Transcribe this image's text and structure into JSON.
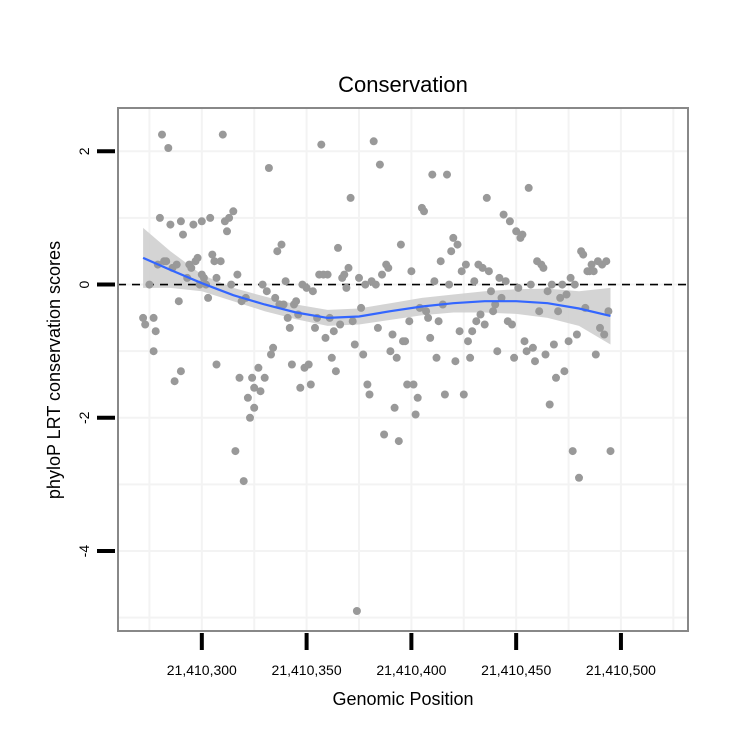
{
  "chart_data": {
    "type": "scatter",
    "title": "Conservation",
    "xlabel": "Genomic Position",
    "ylabel": "phyloP LRT conservation scores",
    "xlim": [
      21410260,
      21410532
    ],
    "ylim": [
      -5.2,
      2.65
    ],
    "x_ticks": [
      21410300,
      21410350,
      21410400,
      21410450,
      21410500
    ],
    "x_tick_labels": [
      "21,410,300",
      "21,410,350",
      "21,410,400",
      "21,410,450",
      "21,410,500"
    ],
    "y_ticks": [
      2,
      0,
      -2,
      -4
    ],
    "y_tick_labels": [
      "2",
      "0",
      "-2",
      "-4"
    ],
    "reference_line_y": 0,
    "colors": {
      "points": "#999999",
      "smooth_line": "#3366FF",
      "ribbon": "#CCCCCC",
      "panel_border": "#888888",
      "grid": "#F3F3F3"
    },
    "points": [
      {
        "x": 21410272,
        "y": -0.5
      },
      {
        "x": 21410273,
        "y": -0.6
      },
      {
        "x": 21410275,
        "y": 0.0
      },
      {
        "x": 21410277,
        "y": -0.5
      },
      {
        "x": 21410277,
        "y": -1.0
      },
      {
        "x": 21410278,
        "y": -0.7
      },
      {
        "x": 21410279,
        "y": 0.3
      },
      {
        "x": 21410280,
        "y": 1.0
      },
      {
        "x": 21410281,
        "y": 2.25
      },
      {
        "x": 21410282,
        "y": 0.35
      },
      {
        "x": 21410283,
        "y": 0.35
      },
      {
        "x": 21410284,
        "y": 2.05
      },
      {
        "x": 21410285,
        "y": 0.9
      },
      {
        "x": 21410286,
        "y": 0.25
      },
      {
        "x": 21410287,
        "y": -1.45
      },
      {
        "x": 21410288,
        "y": 0.3
      },
      {
        "x": 21410289,
        "y": -0.25
      },
      {
        "x": 21410290,
        "y": -1.3
      },
      {
        "x": 21410290,
        "y": 0.95
      },
      {
        "x": 21410291,
        "y": 0.75
      },
      {
        "x": 21410293,
        "y": 0.1
      },
      {
        "x": 21410294,
        "y": 0.3
      },
      {
        "x": 21410295,
        "y": 0.25
      },
      {
        "x": 21410296,
        "y": 0.9
      },
      {
        "x": 21410297,
        "y": 0.35
      },
      {
        "x": 21410298,
        "y": 0.4
      },
      {
        "x": 21410299,
        "y": 0.0
      },
      {
        "x": 21410300,
        "y": 0.95
      },
      {
        "x": 21410300,
        "y": 0.15
      },
      {
        "x": 21410301,
        "y": 0.1
      },
      {
        "x": 21410302,
        "y": 0.0
      },
      {
        "x": 21410303,
        "y": -0.2
      },
      {
        "x": 21410304,
        "y": 1.0
      },
      {
        "x": 21410305,
        "y": 0.45
      },
      {
        "x": 21410306,
        "y": 0.35
      },
      {
        "x": 21410307,
        "y": 0.1
      },
      {
        "x": 21410307,
        "y": -1.2
      },
      {
        "x": 21410309,
        "y": 0.35
      },
      {
        "x": 21410310,
        "y": 2.25
      },
      {
        "x": 21410311,
        "y": 0.95
      },
      {
        "x": 21410312,
        "y": 0.8
      },
      {
        "x": 21410313,
        "y": 1.0
      },
      {
        "x": 21410314,
        "y": 0.0
      },
      {
        "x": 21410315,
        "y": 1.1
      },
      {
        "x": 21410316,
        "y": -2.5
      },
      {
        "x": 21410317,
        "y": 0.15
      },
      {
        "x": 21410318,
        "y": -1.4
      },
      {
        "x": 21410319,
        "y": -0.25
      },
      {
        "x": 21410320,
        "y": -2.95
      },
      {
        "x": 21410321,
        "y": -0.2
      },
      {
        "x": 21410322,
        "y": -1.7
      },
      {
        "x": 21410323,
        "y": -2.0
      },
      {
        "x": 21410324,
        "y": -1.4
      },
      {
        "x": 21410325,
        "y": -1.55
      },
      {
        "x": 21410325,
        "y": -1.85
      },
      {
        "x": 21410327,
        "y": -1.25
      },
      {
        "x": 21410328,
        "y": -1.6
      },
      {
        "x": 21410329,
        "y": 0.0
      },
      {
        "x": 21410330,
        "y": -1.4
      },
      {
        "x": 21410331,
        "y": -0.1
      },
      {
        "x": 21410332,
        "y": 1.75
      },
      {
        "x": 21410333,
        "y": -1.05
      },
      {
        "x": 21410334,
        "y": -0.95
      },
      {
        "x": 21410335,
        "y": -0.2
      },
      {
        "x": 21410336,
        "y": 0.5
      },
      {
        "x": 21410337,
        "y": -0.3
      },
      {
        "x": 21410338,
        "y": 0.6
      },
      {
        "x": 21410339,
        "y": -0.3
      },
      {
        "x": 21410340,
        "y": 0.05
      },
      {
        "x": 21410341,
        "y": -0.5
      },
      {
        "x": 21410342,
        "y": -0.65
      },
      {
        "x": 21410343,
        "y": -1.2
      },
      {
        "x": 21410344,
        "y": -0.3
      },
      {
        "x": 21410345,
        "y": -0.25
      },
      {
        "x": 21410346,
        "y": -0.45
      },
      {
        "x": 21410347,
        "y": -1.55
      },
      {
        "x": 21410348,
        "y": 0.0
      },
      {
        "x": 21410349,
        "y": -1.25
      },
      {
        "x": 21410350,
        "y": -0.05
      },
      {
        "x": 21410351,
        "y": -1.2
      },
      {
        "x": 21410352,
        "y": -1.5
      },
      {
        "x": 21410353,
        "y": -0.1
      },
      {
        "x": 21410354,
        "y": -0.65
      },
      {
        "x": 21410355,
        "y": -0.5
      },
      {
        "x": 21410356,
        "y": 0.15
      },
      {
        "x": 21410357,
        "y": 2.1
      },
      {
        "x": 21410358,
        "y": 0.15
      },
      {
        "x": 21410359,
        "y": -0.8
      },
      {
        "x": 21410360,
        "y": 0.15
      },
      {
        "x": 21410361,
        "y": -0.5
      },
      {
        "x": 21410362,
        "y": -1.1
      },
      {
        "x": 21410363,
        "y": -0.7
      },
      {
        "x": 21410364,
        "y": -1.3
      },
      {
        "x": 21410365,
        "y": 0.55
      },
      {
        "x": 21410366,
        "y": -0.6
      },
      {
        "x": 21410367,
        "y": 0.1
      },
      {
        "x": 21410368,
        "y": 0.15
      },
      {
        "x": 21410369,
        "y": -0.05
      },
      {
        "x": 21410370,
        "y": 0.25
      },
      {
        "x": 21410371,
        "y": 1.3
      },
      {
        "x": 21410372,
        "y": -0.55
      },
      {
        "x": 21410373,
        "y": -0.9
      },
      {
        "x": 21410374,
        "y": -4.9
      },
      {
        "x": 21410375,
        "y": 0.1
      },
      {
        "x": 21410376,
        "y": -0.35
      },
      {
        "x": 21410377,
        "y": -1.05
      },
      {
        "x": 21410378,
        "y": 0.0
      },
      {
        "x": 21410379,
        "y": -1.5
      },
      {
        "x": 21410380,
        "y": -1.65
      },
      {
        "x": 21410381,
        "y": 0.05
      },
      {
        "x": 21410382,
        "y": 2.15
      },
      {
        "x": 21410383,
        "y": 0.0
      },
      {
        "x": 21410384,
        "y": -0.65
      },
      {
        "x": 21410385,
        "y": 1.8
      },
      {
        "x": 21410386,
        "y": 0.15
      },
      {
        "x": 21410387,
        "y": -2.25
      },
      {
        "x": 21410388,
        "y": 0.3
      },
      {
        "x": 21410389,
        "y": 0.25
      },
      {
        "x": 21410390,
        "y": -1.0
      },
      {
        "x": 21410391,
        "y": -0.75
      },
      {
        "x": 21410392,
        "y": -1.85
      },
      {
        "x": 21410393,
        "y": -1.1
      },
      {
        "x": 21410394,
        "y": -2.35
      },
      {
        "x": 21410395,
        "y": 0.6
      },
      {
        "x": 21410396,
        "y": -0.85
      },
      {
        "x": 21410397,
        "y": -0.85
      },
      {
        "x": 21410398,
        "y": -1.5
      },
      {
        "x": 21410399,
        "y": -0.55
      },
      {
        "x": 21410400,
        "y": 0.2
      },
      {
        "x": 21410401,
        "y": -1.5
      },
      {
        "x": 21410402,
        "y": -1.95
      },
      {
        "x": 21410403,
        "y": -1.7
      },
      {
        "x": 21410404,
        "y": -0.35
      },
      {
        "x": 21410405,
        "y": 1.15
      },
      {
        "x": 21410406,
        "y": 1.1
      },
      {
        "x": 21410407,
        "y": -0.4
      },
      {
        "x": 21410408,
        "y": -0.5
      },
      {
        "x": 21410409,
        "y": -0.8
      },
      {
        "x": 21410410,
        "y": 1.65
      },
      {
        "x": 21410411,
        "y": 0.05
      },
      {
        "x": 21410412,
        "y": -1.1
      },
      {
        "x": 21410413,
        "y": -0.55
      },
      {
        "x": 21410414,
        "y": 0.35
      },
      {
        "x": 21410415,
        "y": -0.3
      },
      {
        "x": 21410416,
        "y": -1.65
      },
      {
        "x": 21410417,
        "y": 1.65
      },
      {
        "x": 21410418,
        "y": 0.0
      },
      {
        "x": 21410419,
        "y": 0.5
      },
      {
        "x": 21410420,
        "y": 0.7
      },
      {
        "x": 21410421,
        "y": -1.15
      },
      {
        "x": 21410422,
        "y": 0.6
      },
      {
        "x": 21410423,
        "y": -0.7
      },
      {
        "x": 21410424,
        "y": 0.2
      },
      {
        "x": 21410425,
        "y": -1.65
      },
      {
        "x": 21410426,
        "y": 0.3
      },
      {
        "x": 21410427,
        "y": -0.85
      },
      {
        "x": 21410428,
        "y": -1.1
      },
      {
        "x": 21410429,
        "y": -0.7
      },
      {
        "x": 21410430,
        "y": 0.05
      },
      {
        "x": 21410431,
        "y": -0.55
      },
      {
        "x": 21410432,
        "y": 0.3
      },
      {
        "x": 21410433,
        "y": -0.45
      },
      {
        "x": 21410434,
        "y": 0.25
      },
      {
        "x": 21410435,
        "y": -0.6
      },
      {
        "x": 21410436,
        "y": 1.3
      },
      {
        "x": 21410437,
        "y": 0.2
      },
      {
        "x": 21410438,
        "y": -0.1
      },
      {
        "x": 21410439,
        "y": -0.4
      },
      {
        "x": 21410440,
        "y": -0.3
      },
      {
        "x": 21410441,
        "y": -1.0
      },
      {
        "x": 21410442,
        "y": 0.1
      },
      {
        "x": 21410443,
        "y": -0.2
      },
      {
        "x": 21410444,
        "y": 1.05
      },
      {
        "x": 21410445,
        "y": 0.05
      },
      {
        "x": 21410446,
        "y": -0.55
      },
      {
        "x": 21410447,
        "y": 0.95
      },
      {
        "x": 21410448,
        "y": -0.6
      },
      {
        "x": 21410449,
        "y": -1.1
      },
      {
        "x": 21410450,
        "y": 0.8
      },
      {
        "x": 21410451,
        "y": -0.05
      },
      {
        "x": 21410452,
        "y": 0.7
      },
      {
        "x": 21410453,
        "y": 0.75
      },
      {
        "x": 21410454,
        "y": -0.85
      },
      {
        "x": 21410455,
        "y": -1.0
      },
      {
        "x": 21410456,
        "y": 1.45
      },
      {
        "x": 21410457,
        "y": 0.0
      },
      {
        "x": 21410458,
        "y": -0.95
      },
      {
        "x": 21410459,
        "y": -1.15
      },
      {
        "x": 21410460,
        "y": 0.35
      },
      {
        "x": 21410461,
        "y": -0.4
      },
      {
        "x": 21410462,
        "y": 0.3
      },
      {
        "x": 21410463,
        "y": 0.25
      },
      {
        "x": 21410464,
        "y": -1.05
      },
      {
        "x": 21410465,
        "y": -0.1
      },
      {
        "x": 21410466,
        "y": -1.8
      },
      {
        "x": 21410467,
        "y": 0.0
      },
      {
        "x": 21410468,
        "y": -0.9
      },
      {
        "x": 21410469,
        "y": -1.4
      },
      {
        "x": 21410470,
        "y": -0.4
      },
      {
        "x": 21410471,
        "y": -0.2
      },
      {
        "x": 21410472,
        "y": 0.0
      },
      {
        "x": 21410473,
        "y": -1.3
      },
      {
        "x": 21410474,
        "y": -0.15
      },
      {
        "x": 21410475,
        "y": -0.85
      },
      {
        "x": 21410476,
        "y": 0.1
      },
      {
        "x": 21410477,
        "y": -2.5
      },
      {
        "x": 21410478,
        "y": 0.0
      },
      {
        "x": 21410479,
        "y": -0.75
      },
      {
        "x": 21410480,
        "y": -2.9
      },
      {
        "x": 21410481,
        "y": 0.5
      },
      {
        "x": 21410482,
        "y": 0.45
      },
      {
        "x": 21410483,
        "y": -0.35
      },
      {
        "x": 21410484,
        "y": 0.2
      },
      {
        "x": 21410485,
        "y": 0.2
      },
      {
        "x": 21410486,
        "y": 0.3
      },
      {
        "x": 21410487,
        "y": 0.2
      },
      {
        "x": 21410488,
        "y": -1.05
      },
      {
        "x": 21410489,
        "y": 0.35
      },
      {
        "x": 21410490,
        "y": -0.65
      },
      {
        "x": 21410491,
        "y": 0.3
      },
      {
        "x": 21410492,
        "y": -0.75
      },
      {
        "x": 21410493,
        "y": 0.35
      },
      {
        "x": 21410494,
        "y": -0.4
      },
      {
        "x": 21410495,
        "y": -2.5
      }
    ],
    "smooth_line": {
      "x": [
        21410272,
        21410285,
        21410300,
        21410315,
        21410330,
        21410345,
        21410360,
        21410375,
        21410390,
        21410405,
        21410420,
        21410435,
        21410450,
        21410465,
        21410480,
        21410495
      ],
      "y": [
        0.4,
        0.22,
        0.02,
        -0.16,
        -0.3,
        -0.42,
        -0.5,
        -0.48,
        -0.4,
        -0.33,
        -0.28,
        -0.25,
        -0.25,
        -0.28,
        -0.36,
        -0.47
      ]
    },
    "confidence_band": {
      "lower": [
        -0.05,
        -0.05,
        -0.1,
        -0.25,
        -0.4,
        -0.52,
        -0.62,
        -0.6,
        -0.53,
        -0.46,
        -0.42,
        -0.42,
        -0.44,
        -0.5,
        -0.62,
        -0.9
      ],
      "upper": [
        0.85,
        0.5,
        0.15,
        -0.05,
        -0.18,
        -0.3,
        -0.38,
        -0.36,
        -0.28,
        -0.2,
        -0.15,
        -0.1,
        -0.07,
        -0.06,
        -0.1,
        -0.05
      ]
    }
  }
}
